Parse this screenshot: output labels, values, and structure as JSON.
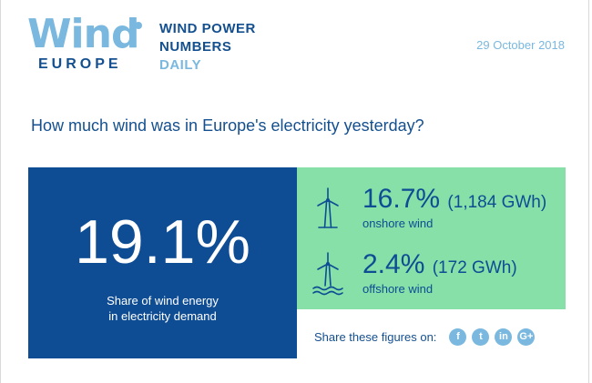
{
  "header": {
    "logo_word": "Wind",
    "logo_sub": "EUROPE",
    "tagline_line1": "WIND POWER",
    "tagline_line2": "NUMBERS",
    "tagline_line3": "DAILY",
    "date": "29 October 2018"
  },
  "question": "How much wind was in Europe's electricity yesterday?",
  "total": {
    "percent": "19.1%",
    "caption_line1": "Share of wind energy",
    "caption_line2": "in electricity demand"
  },
  "onshore": {
    "percent": "16.7%",
    "gwh": "(1,184 GWh)",
    "label": "onshore wind",
    "icon": "onshore-turbine-icon"
  },
  "offshore": {
    "percent": "2.4%",
    "gwh": "(172 GWh)",
    "label": "offshore wind",
    "icon": "offshore-turbine-icon"
  },
  "share": {
    "label": "Share these figures on:",
    "networks": [
      {
        "name": "facebook",
        "glyph": "f"
      },
      {
        "name": "twitter",
        "glyph": "t"
      },
      {
        "name": "linkedin",
        "glyph": "in"
      },
      {
        "name": "google-plus",
        "glyph": "G+"
      }
    ]
  },
  "colors": {
    "brand_dark_blue": "#14508f",
    "brand_light_blue": "#7ab8df",
    "panel_blue": "#0e4c94",
    "panel_green": "#86e0a8"
  }
}
